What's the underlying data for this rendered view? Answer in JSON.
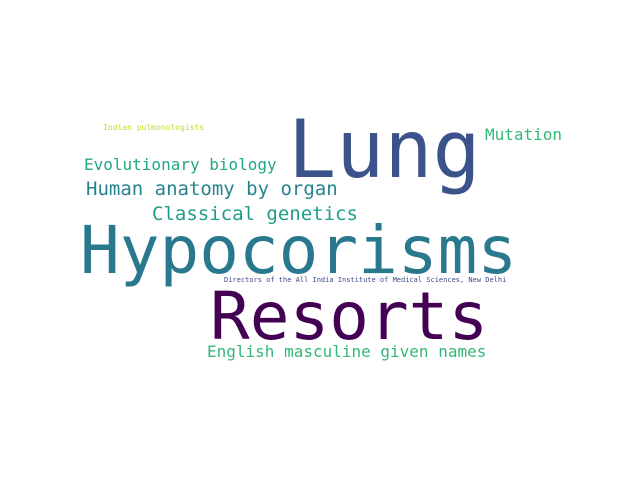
{
  "words": [
    {
      "text": "Indian pulmonologists",
      "color": "#bddf26"
    },
    {
      "text": "Lung",
      "color": "#3b528b"
    },
    {
      "text": "Mutation",
      "color": "#35b779"
    },
    {
      "text": "Evolutionary biology",
      "color": "#22a884"
    },
    {
      "text": "Human anatomy by organ",
      "color": "#26828e"
    },
    {
      "text": "Classical genetics",
      "color": "#1f9e89"
    },
    {
      "text": "Hypocorisms",
      "color": "#2a788e"
    },
    {
      "text": "Directors of the All India Institute of Medical Sciences, New Delhi",
      "color": "#3e4a89"
    },
    {
      "text": "Resorts",
      "color": "#440154"
    },
    {
      "text": "English masculine given names",
      "color": "#35b779"
    }
  ]
}
